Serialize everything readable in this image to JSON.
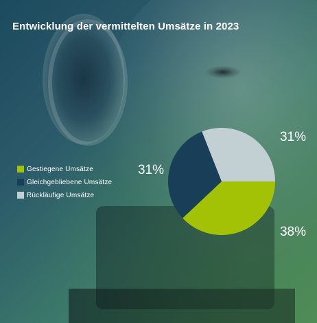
{
  "title": "Entwicklung der vermittelten Umsätze in 2023",
  "chart_data": {
    "type": "pie",
    "title": "Entwicklung der vermittelten Umsätze in 2023",
    "legend_position": "left",
    "categories": [
      "Gestiegene Umsätze",
      "Gleichgebliebene Umsätze",
      "Rückläufige Umsätze"
    ],
    "values": [
      38,
      31,
      31
    ],
    "labels": [
      "38%",
      "31%",
      "31%"
    ],
    "colors": [
      "#a3c205",
      "#183e58",
      "#c2cfd3"
    ]
  },
  "legend": {
    "items": [
      {
        "label": "Gestiegene Umsätze",
        "color": "#a3c205"
      },
      {
        "label": "Gleichgebliebene Umsätze",
        "color": "#183e58"
      },
      {
        "label": "Rückläufige Umsätze",
        "color": "#c2cfd3"
      }
    ]
  }
}
